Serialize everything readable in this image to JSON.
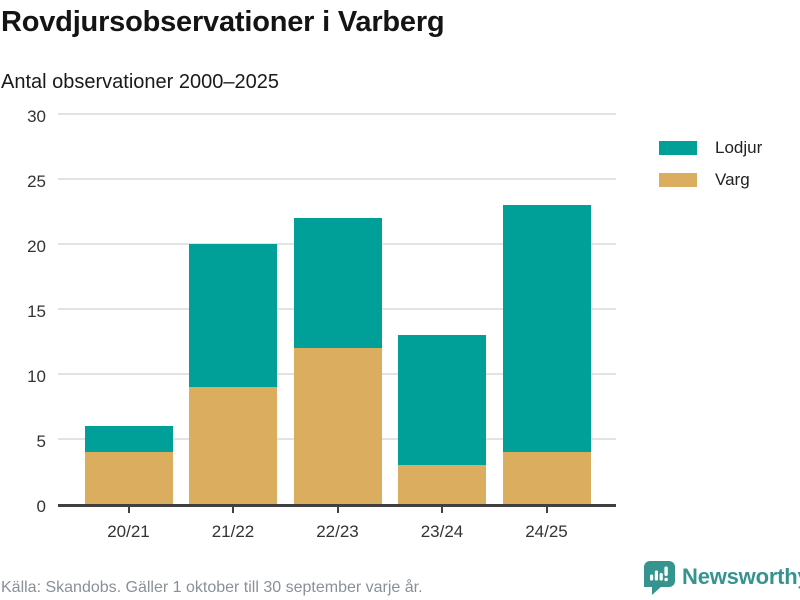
{
  "header": {
    "title": "Rovdjursobservationer i Varberg",
    "subtitle": "Antal observationer 2000–2025"
  },
  "chart_data": {
    "type": "bar",
    "stacked": true,
    "title": "Rovdjursobservationer i Varberg",
    "subtitle": "Antal observationer 2000–2025",
    "categories": [
      "20/21",
      "21/22",
      "22/23",
      "23/24",
      "24/25"
    ],
    "series": [
      {
        "name": "Varg",
        "color": "#DBAE5F",
        "values": [
          4,
          9,
          12,
          3,
          4
        ]
      },
      {
        "name": "Lodjur",
        "color": "#00A099",
        "values": [
          2,
          11,
          10,
          10,
          19
        ]
      }
    ],
    "totals": [
      6,
      20,
      22,
      13,
      23
    ],
    "xlabel": "",
    "ylabel": "Antal observationer",
    "ylim": [
      0,
      30
    ],
    "yticks": [
      0,
      5,
      10,
      15,
      20,
      25,
      30
    ],
    "grid": "horizontal",
    "legend_position": "right-top"
  },
  "legend": {
    "items": [
      {
        "label": "Lodjur",
        "color": "#00A099"
      },
      {
        "label": "Varg",
        "color": "#DBAE5F"
      }
    ]
  },
  "footer": {
    "source": "Källa: Skandobs. Gäller 1 oktober till 30 september varje år.",
    "brand": "Newsworthy"
  },
  "colors": {
    "lodjur": "#00A099",
    "varg": "#DBAE5F",
    "brand_teal": "#35948E",
    "gridline": "#E3E3E3",
    "axis": "#404040",
    "title_text": "#141414",
    "axis_text": "#333333",
    "muted_text": "#8A9097"
  }
}
